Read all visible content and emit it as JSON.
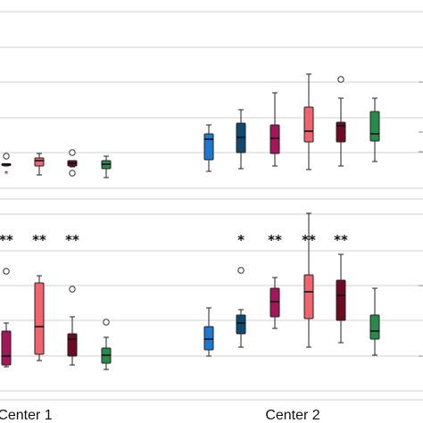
{
  "chart_data": {
    "type": "box",
    "groups": [
      "Center 1",
      "Center 2"
    ],
    "series_colors": {
      "blue": "#1f77d4",
      "navy": "#0d4a6e",
      "magenta": "#a3175a",
      "salmon": "#f2636e",
      "maroon": "#6e0b22",
      "green": "#2a8a4b"
    },
    "panels": [
      {
        "name": "top",
        "boxes": [
          {
            "group": 0,
            "color": "maroon",
            "min": 183.5,
            "q1": 183.5,
            "median": 184,
            "q3": 185,
            "max": 186,
            "outliers": [
              {
                "v": 175,
                "marker": "circle"
              },
              {
                "v": 194,
                "marker": "star"
              }
            ]
          },
          {
            "group": 0,
            "color": "salmon",
            "min": 172,
            "q1": 177,
            "median": 180,
            "q3": 186,
            "max": 196,
            "outliers": []
          },
          {
            "group": 0,
            "color": "maroon",
            "min": 180,
            "q1": 180,
            "median": 183,
            "q3": 186,
            "max": 187,
            "outliers": [
              {
                "v": 171,
                "marker": "circle"
              },
              {
                "v": 194,
                "marker": "circle"
              }
            ]
          },
          {
            "group": 0,
            "color": "green",
            "min": 175,
            "q1": 180,
            "median": 184,
            "q3": 189,
            "max": 199,
            "outliers": []
          },
          {
            "group": 1,
            "color": "blue",
            "min": 140,
            "q1": 150,
            "median": 156,
            "q3": 179,
            "max": 192,
            "outliers": []
          },
          {
            "group": 1,
            "color": "navy",
            "min": 123,
            "q1": 138,
            "median": 154,
            "q3": 171,
            "max": 189,
            "outliers": []
          },
          {
            "group": 1,
            "color": "magenta",
            "min": 104,
            "q1": 140,
            "median": 155,
            "q3": 172,
            "max": 186,
            "outliers": []
          },
          {
            "group": 1,
            "color": "salmon",
            "min": 83,
            "q1": 120,
            "median": 147,
            "q3": 159,
            "max": 190,
            "outliers": []
          },
          {
            "group": 1,
            "color": "maroon",
            "min": 110,
            "q1": 137,
            "median": 141,
            "q3": 159,
            "max": 186,
            "outliers": [
              {
                "v": 89,
                "marker": "circle"
              }
            ]
          },
          {
            "group": 1,
            "color": "green",
            "min": 110,
            "q1": 125,
            "median": 150,
            "q3": 158,
            "max": 181,
            "outliers": []
          }
        ]
      },
      {
        "name": "bottom",
        "boxes": [
          {
            "group": 0,
            "color": "magenta",
            "min": 362,
            "q1": 371,
            "median": 399,
            "q3": 409,
            "max": 411,
            "outliers": [
              {
                "v": 304,
                "marker": "circle"
              }
            ]
          },
          {
            "group": 0,
            "color": "salmon",
            "min": 309,
            "q1": 317,
            "median": 366,
            "q3": 397,
            "max": 404,
            "outliers": []
          },
          {
            "group": 0,
            "color": "maroon",
            "min": 355,
            "q1": 374,
            "median": 380,
            "q3": 399,
            "max": 409,
            "outliers": [
              {
                "v": 324,
                "marker": "circle"
              }
            ]
          },
          {
            "group": 0,
            "color": "green",
            "min": 378,
            "q1": 390,
            "median": 398,
            "q3": 407,
            "max": 414,
            "outliers": [
              {
                "v": 361,
                "marker": "circle"
              }
            ]
          },
          {
            "group": 1,
            "color": "blue",
            "min": 345,
            "q1": 366,
            "median": 380,
            "q3": 392,
            "max": 399,
            "outliers": []
          },
          {
            "group": 1,
            "color": "navy",
            "min": 347,
            "q1": 353,
            "median": 362,
            "q3": 374,
            "max": 389,
            "outliers": [
              {
                "v": 303,
                "marker": "circle"
              }
            ]
          },
          {
            "group": 1,
            "color": "magenta",
            "min": 311,
            "q1": 323,
            "median": 338,
            "q3": 355,
            "max": 368,
            "outliers": []
          },
          {
            "group": 1,
            "color": "salmon",
            "min": 239,
            "q1": 308,
            "median": 327,
            "q3": 357,
            "max": 389,
            "outliers": []
          },
          {
            "group": 1,
            "color": "maroon",
            "min": 285,
            "q1": 314,
            "median": 331,
            "q3": 359,
            "max": 384,
            "outliers": []
          },
          {
            "group": 1,
            "color": "green",
            "min": 323,
            "q1": 353,
            "median": 371,
            "q3": 380,
            "max": 398,
            "outliers": []
          }
        ]
      }
    ],
    "significance": [
      {
        "panel": "bottom",
        "box": 0,
        "text": "**"
      },
      {
        "panel": "bottom",
        "box": 1,
        "text": "**"
      },
      {
        "panel": "bottom",
        "box": 2,
        "text": "**"
      },
      {
        "panel": "bottom",
        "box": 5,
        "text": "*"
      },
      {
        "panel": "bottom",
        "box": 6,
        "text": "**"
      },
      {
        "panel": "bottom",
        "box": 7,
        "text": "**"
      },
      {
        "panel": "bottom",
        "box": 8,
        "text": "**"
      }
    ],
    "grid": true,
    "legend": "none"
  }
}
